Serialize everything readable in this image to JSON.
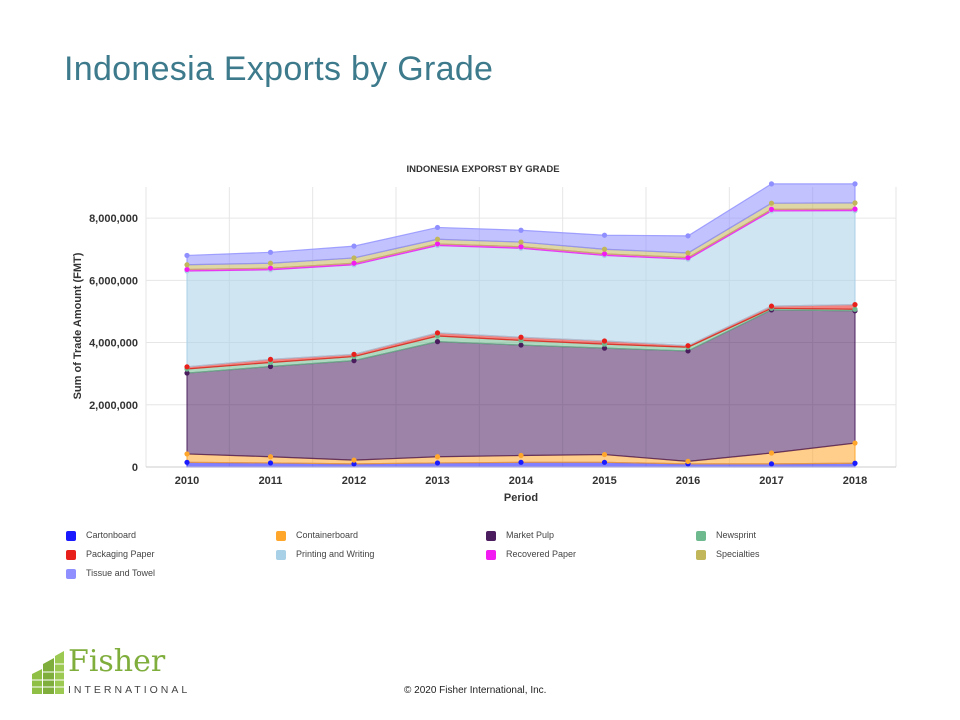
{
  "slide": {
    "title": "Indonesia Exports by Grade"
  },
  "footer": {
    "copyright": "© 2020 Fisher International,  Inc.",
    "logo_word": "Fisher",
    "logo_sub": "INTERNATIONAL"
  },
  "chart_data": {
    "type": "area",
    "stacked": true,
    "title": "INDONESIA EXPORST BY GRADE",
    "xlabel": "Period",
    "ylabel": "Sum of Trade Amount (FMT)",
    "ylim": [
      0,
      9000000
    ],
    "yticks": [
      0,
      2000000,
      4000000,
      6000000,
      8000000
    ],
    "ytick_labels": [
      "0",
      "2,000,000",
      "4,000,000",
      "6,000,000",
      "8,000,000"
    ],
    "categories": [
      "2010",
      "2011",
      "2012",
      "2013",
      "2014",
      "2015",
      "2016",
      "2017",
      "2018"
    ],
    "grid": true,
    "legend_position": "bottom",
    "series": [
      {
        "name": "Cartonboard",
        "color": "#1a1aff",
        "values": [
          150000,
          130000,
          100000,
          130000,
          150000,
          150000,
          100000,
          100000,
          120000
        ]
      },
      {
        "name": "Containerboard",
        "color": "#ffa62b",
        "values": [
          270000,
          200000,
          120000,
          200000,
          220000,
          250000,
          80000,
          350000,
          650000
        ]
      },
      {
        "name": "Market Pulp",
        "color": "#4b1d5e",
        "values": [
          2600000,
          2900000,
          3200000,
          3700000,
          3550000,
          3420000,
          3550000,
          4600000,
          4250000
        ]
      },
      {
        "name": "Newsprint",
        "color": "#6fb98f",
        "values": [
          130000,
          130000,
          130000,
          180000,
          150000,
          130000,
          120000,
          50000,
          50000
        ]
      },
      {
        "name": "Packaging Paper",
        "color": "#e8201c",
        "values": [
          70000,
          100000,
          70000,
          100000,
          100000,
          100000,
          50000,
          70000,
          150000
        ]
      },
      {
        "name": "Printing and Writing",
        "color": "#a8d0e6",
        "values": [
          3080000,
          2880000,
          2880000,
          2810000,
          2860000,
          2750000,
          2780000,
          3060000,
          3020000
        ]
      },
      {
        "name": "Recovered Paper",
        "color": "#f21bf2",
        "values": [
          50000,
          50000,
          50000,
          50000,
          50000,
          50000,
          50000,
          50000,
          50000
        ]
      },
      {
        "name": "Specialties",
        "color": "#c2b65a",
        "values": [
          150000,
          160000,
          170000,
          150000,
          150000,
          150000,
          150000,
          200000,
          200000
        ]
      },
      {
        "name": "Tissue and Towel",
        "color": "#8f8fff",
        "values": [
          300000,
          350000,
          380000,
          380000,
          380000,
          450000,
          550000,
          620000,
          610000
        ]
      }
    ]
  }
}
